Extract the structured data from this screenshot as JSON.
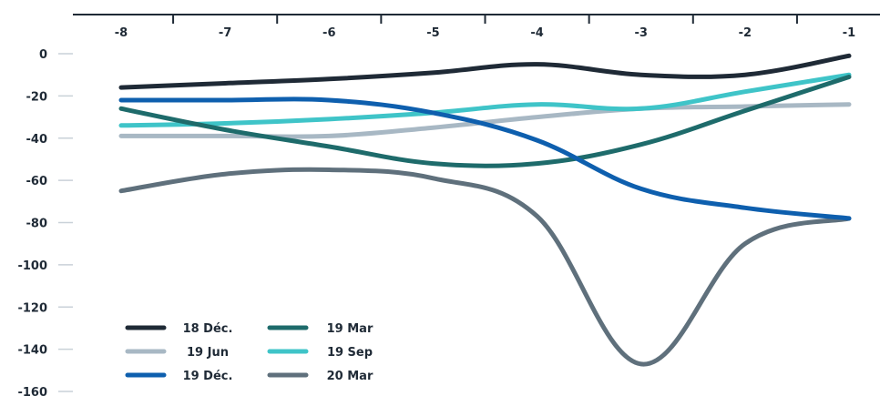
{
  "chart_data": {
    "type": "line",
    "x": [
      -8,
      -7,
      -6,
      -5,
      -4,
      -3,
      -2,
      -1
    ],
    "x_tick_labels": [
      "-8",
      "-7",
      "-6",
      "-5",
      "-4",
      "-3",
      "-2",
      "-1"
    ],
    "y_tick_labels": [
      "0",
      "-20",
      "-40",
      "-60",
      "-80",
      "-100",
      "-120",
      "-140",
      "-160"
    ],
    "y_ticks": [
      0,
      -20,
      -40,
      -60,
      -80,
      -100,
      -120,
      -140,
      -160
    ],
    "ylim": [
      -160,
      0
    ],
    "xlim": [
      -8,
      -1
    ],
    "x_axis_position": "top",
    "grid": false,
    "legend_position": "bottom-left",
    "series": [
      {
        "name": "18 Déc.",
        "color": "#1f2a36",
        "values": [
          -16,
          -14,
          -12,
          -9,
          -5,
          -10,
          -10,
          -1
        ]
      },
      {
        "name": "19 Mar",
        "color": "#1e6b6b",
        "values": [
          -26,
          -36,
          -44,
          -52,
          -52,
          -43,
          -27,
          -11
        ]
      },
      {
        "name": "19 Jun",
        "color": "#a8b8c4",
        "values": [
          -39,
          -39,
          -39,
          -35,
          -30,
          -26,
          -25,
          -24
        ]
      },
      {
        "name": "19 Sep",
        "color": "#3fc4c8",
        "values": [
          -34,
          -33,
          -31,
          -28,
          -24,
          -26,
          -18,
          -10
        ]
      },
      {
        "name": "19 Déc.",
        "color": "#0e5fae",
        "values": [
          -22,
          -22,
          -22,
          -28,
          -41,
          -64,
          -73,
          -78
        ]
      },
      {
        "name": "20 Mar",
        "color": "#5f707c",
        "values": [
          -65,
          -57,
          -55,
          -59,
          -77,
          -147,
          -90,
          -78
        ]
      }
    ]
  }
}
